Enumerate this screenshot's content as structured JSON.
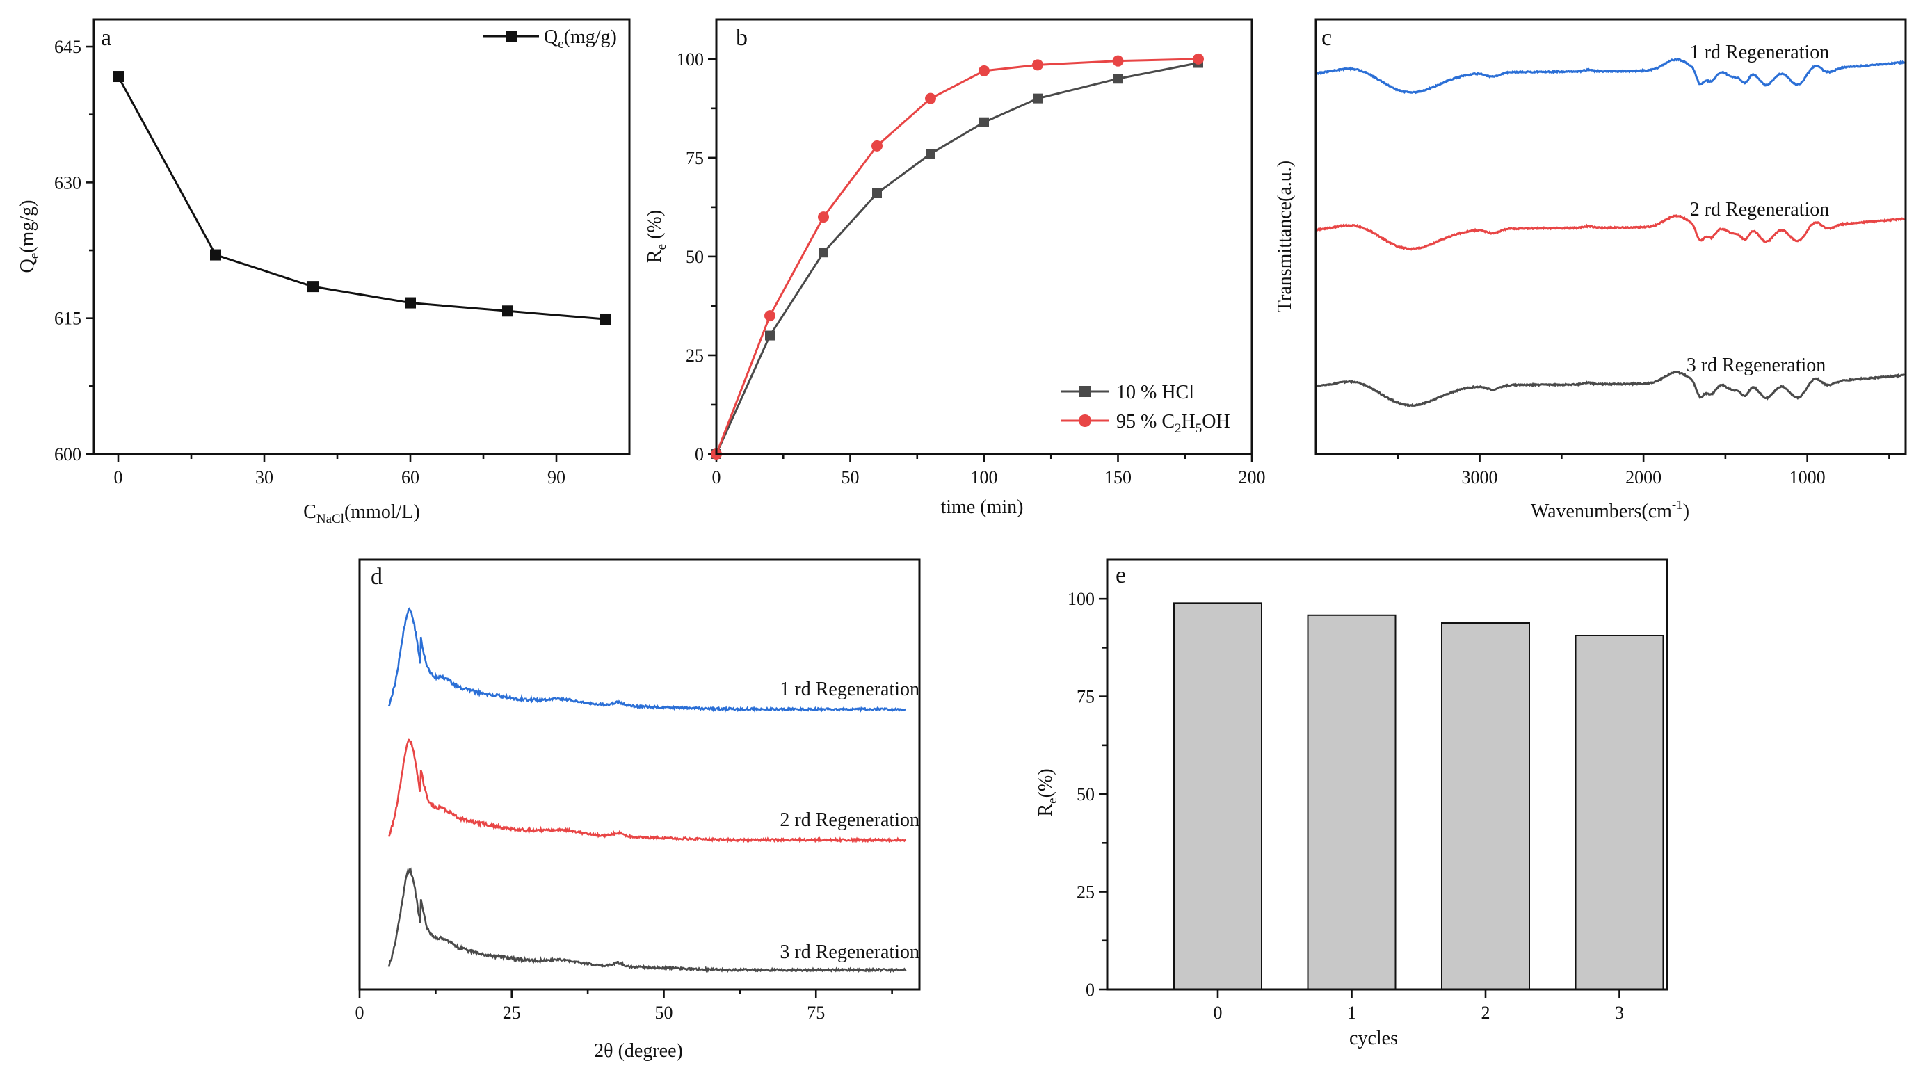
{
  "chart_data": [
    {
      "type": "line",
      "panel": "a",
      "xlabel": "C",
      "xlabel_sub": "NaCl",
      "xlabel_unit": "(mmol/L)",
      "ylabel": "Q",
      "ylabel_sub": "e",
      "ylabel_unit": "(mg/g)",
      "xlim": [
        -5,
        105
      ],
      "ylim": [
        600,
        648
      ],
      "xticks": [
        0,
        30,
        60,
        90
      ],
      "yticks": [
        600,
        615,
        630,
        645
      ],
      "legend": "top-right",
      "series": [
        {
          "name": "Qe(mg/g)",
          "legend_main": "Q",
          "legend_sub": "e",
          "legend_tail": "(mg/g)",
          "color": "#111111",
          "marker": "square",
          "x": [
            0,
            20,
            40,
            60,
            80,
            100
          ],
          "y": [
            641.7,
            622.0,
            618.5,
            616.7,
            615.8,
            614.9
          ]
        }
      ]
    },
    {
      "type": "line",
      "panel": "b",
      "xlabel": "time (min)",
      "ylabel": "R",
      "ylabel_sub": "e",
      "ylabel_unit": " (%)",
      "xlim": [
        0,
        200
      ],
      "ylim": [
        0,
        110
      ],
      "xticks": [
        0,
        50,
        100,
        150,
        200
      ],
      "yticks": [
        0,
        25,
        50,
        75,
        100
      ],
      "legend": "bottom-right",
      "series": [
        {
          "name": "10 % HCl",
          "legend_main": "10 % HCl",
          "color": "#4a4a4a",
          "marker": "square",
          "x": [
            0,
            20,
            40,
            60,
            80,
            100,
            120,
            150,
            180
          ],
          "y": [
            0,
            30,
            51,
            66,
            76,
            84,
            90,
            95,
            99
          ]
        },
        {
          "name": "95 % C2H5OH",
          "legend_main": "95 % C",
          "legend_sub": "2",
          "legend_mid": "H",
          "legend_sub2": "5",
          "legend_tail": "OH",
          "color": "#e84545",
          "marker": "circle",
          "x": [
            0,
            20,
            40,
            60,
            80,
            100,
            120,
            150,
            180
          ],
          "y": [
            0,
            35,
            60,
            78,
            90,
            97,
            98.5,
            99.5,
            100
          ]
        }
      ]
    },
    {
      "type": "line",
      "panel": "c",
      "xlabel": "Wavenumbers(cm",
      "xlabel_sup": "-1",
      "xlabel_tail": ")",
      "ylabel": "Transmittance(a.u.)",
      "xlim": [
        4000,
        400
      ],
      "xticks": [
        3000,
        2000,
        1000
      ],
      "series": [
        {
          "name": "1 rd Regeneration",
          "color": "#2b6fd6"
        },
        {
          "name": "2 rd Regeneration",
          "color": "#e84545"
        },
        {
          "name": "3 rd Regeneration",
          "color": "#4a4a4a"
        }
      ]
    },
    {
      "type": "line",
      "panel": "d",
      "xlabel": "2θ (degree)",
      "xlim": [
        0,
        92
      ],
      "xticks": [
        0,
        25,
        50,
        75
      ],
      "series": [
        {
          "name": "1 rd Regeneration",
          "color": "#2b6fd6"
        },
        {
          "name": "2 rd Regeneration",
          "color": "#e84545"
        },
        {
          "name": "3 rd Regeneration",
          "color": "#4a4a4a"
        }
      ]
    },
    {
      "type": "bar",
      "panel": "e",
      "xlabel": "cycles",
      "ylabel": "R",
      "ylabel_sub": "e",
      "ylabel_unit": "(%)",
      "ylim": [
        0,
        110
      ],
      "yticks": [
        0,
        25,
        50,
        75,
        100
      ],
      "categories": [
        "0",
        "1",
        "2",
        "3"
      ],
      "values": [
        98.9,
        95.8,
        93.8,
        90.6
      ],
      "bar_color": "#c8c8c8"
    }
  ]
}
